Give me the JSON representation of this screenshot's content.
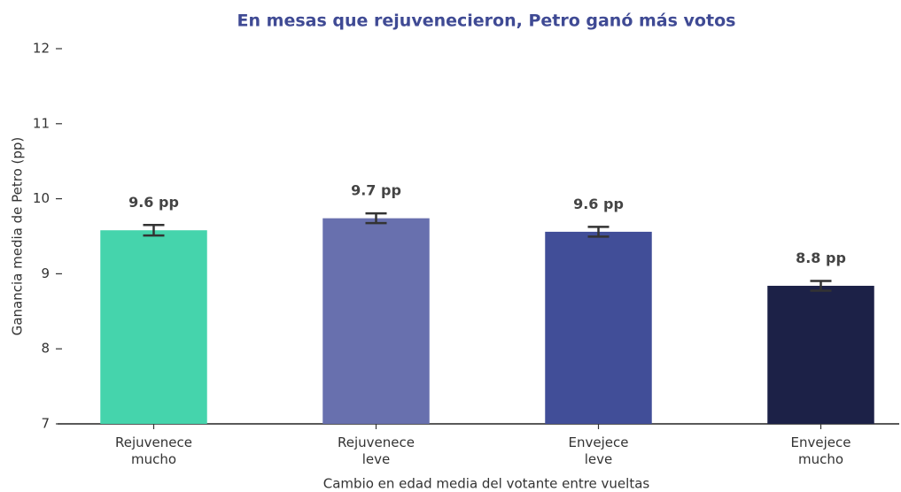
{
  "chart_data": {
    "type": "bar",
    "title": "En mesas que rejuvenecieron, Petro ganó más votos",
    "x_label": "Cambio en edad media del votante entre vueltas",
    "y_label": "Ganancia media de Petro (pp)",
    "categories": [
      "Rejuvenece\nmucho",
      "Rejuvenece\nleve",
      "Envejece\nleve",
      "Envejece\nmucho"
    ],
    "values": [
      9.58,
      9.74,
      9.56,
      8.84
    ],
    "value_labels": [
      "9.6 pp",
      "9.7 pp",
      "9.6 pp",
      "8.8 pp"
    ],
    "errors": [
      0.07,
      0.065,
      0.065,
      0.065
    ],
    "colors": [
      "#45d4ac",
      "#6870ae",
      "#414e98",
      "#1c2147"
    ],
    "ylim": [
      7,
      12
    ],
    "yticks": [
      7,
      8,
      9,
      10,
      11,
      12
    ],
    "grid": false
  }
}
